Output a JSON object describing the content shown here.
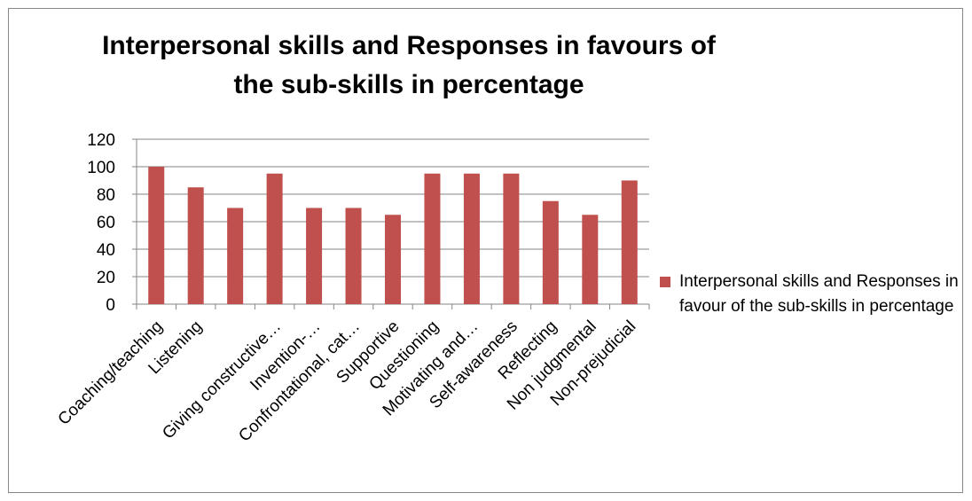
{
  "chart_data": {
    "type": "bar",
    "title": "Interpersonal skills and Responses in favours of the sub-skills in percentage",
    "categories": [
      "Coaching/teaching",
      "Listening",
      "",
      "Giving constructive…",
      "Invention-…",
      "Confrontational, cat…",
      "Supportive",
      "Questioning",
      "Motivating and…",
      "Self-awareness",
      "Reflecting",
      "Non judgmental",
      "Non-prejudicial"
    ],
    "series": [
      {
        "name": "Interpersonal skills and Responses in favour of the sub-skills in percentage",
        "values": [
          100,
          85,
          70,
          95,
          70,
          70,
          65,
          95,
          95,
          95,
          75,
          65,
          90
        ]
      }
    ],
    "ylim": [
      0,
      120
    ],
    "yticks": [
      0,
      20,
      40,
      60,
      80,
      100,
      120
    ],
    "grid": true,
    "legend_position": "right",
    "bar_color": "#c0504d",
    "grid_color": "#868686"
  }
}
